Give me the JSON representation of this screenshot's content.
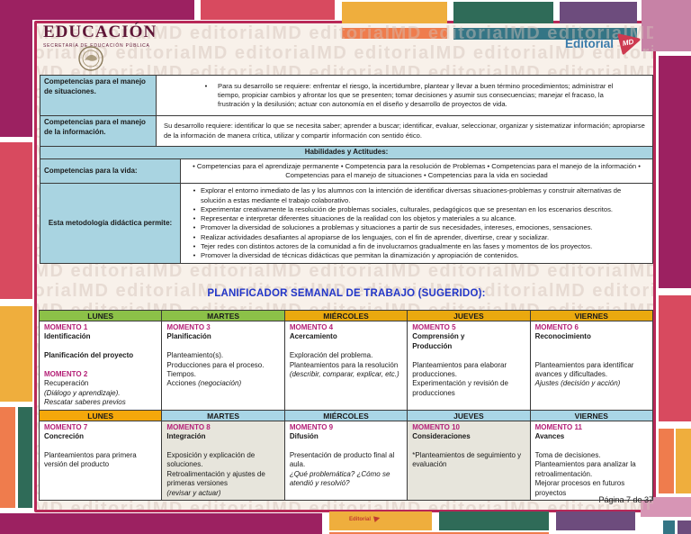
{
  "header": {
    "educacion": {
      "title": "EDUCACIÓN",
      "subtitle": "SECRETARÍA DE EDUCACIÓN PÚBLICA"
    },
    "editorial": {
      "name": "Editorial",
      "badge": "MD"
    }
  },
  "watermark": {
    "text": "editorialMD"
  },
  "competencias": {
    "rows": [
      {
        "label": "Competencias para el manejo de situaciones.",
        "bullets": [
          "Para su desarrollo se requiere: enfrentar el riesgo, la incertidumbre, plantear y llevar a buen término procedimientos; administrar el tiempo, propiciar cambios y afrontar los que se presenten; tomar decisiones y asumir sus consecuencias; manejar el fracaso, la frustración y la desilusión; actuar con autonomía en el diseño y desarrollo de proyectos de vida."
        ]
      },
      {
        "label": "Competencias para el manejo de la información.",
        "text": "Su desarrollo requiere: identificar lo que se necesita saber; aprender a buscar; identificar, evaluar, seleccionar, organizar y sistematizar información; apropiarse de la información de manera crítica, utilizar y compartir información con sentido ético."
      },
      {
        "section": "Habilidades y Actitudes:"
      },
      {
        "label": "Competencias para la vida:",
        "text": "• Competencias para el aprendizaje permanente • Competencia para la resolución de Problemas • Competencias para el manejo de la información • Competencias para el manejo de situaciones • Competencias para la vida en sociedad"
      },
      {
        "label": "Esta metodología didáctica permite:",
        "bullets": [
          "Explorar el entorno inmediato de las y los alumnos con la intención de identificar diversas situaciones-problemas y construir alternativas de solución a estas mediante el trabajo colaborativo.",
          "Experimentar creativamente la resolución de problemas sociales, culturales, pedagógicos que se presentan en los escenarios descritos.",
          "Representar e interpretar diferentes situaciones de la realidad con los objetos y materiales a su alcance.",
          "Promover la diversidad de soluciones a problemas y situaciones a partir de sus necesidades, intereses, emociones, sensaciones.",
          "Realizar actividades desafiantes al apropiarse de los lenguajes, con el fin de aprender, divertirse, crear y socializar.",
          "Tejer redes con distintos actores de la comunidad a fin de involucrarnos gradualmente en las fases y momentos de los proyectos.",
          "Promover la diversidad de técnicas didácticas que permitan la dinamización y apropiación de contenidos."
        ]
      }
    ]
  },
  "planner": {
    "title": "PLANIFICADOR SEMANAL DE TRABAJO (SUGERIDO):",
    "days": [
      "LUNES",
      "MARTES",
      "MIÉRCOLES",
      "JUEVES",
      "VIERNES"
    ],
    "weeks": [
      {
        "header_colors": [
          "green",
          "green",
          "gold",
          "gold",
          "gold"
        ],
        "cell_bg": [
          "white",
          "white",
          "white",
          "white",
          "white"
        ],
        "cells": [
          [
            [
              [
                "MOMENTO 1",
                "m"
              ]
            ],
            [
              [
                "Identificación",
                "b"
              ]
            ],
            [],
            [
              [
                "Planificación del proyecto",
                "b"
              ]
            ],
            [],
            [
              [
                "MOMENTO 2",
                "m"
              ]
            ],
            [
              [
                "Recuperación",
                "n"
              ]
            ],
            [
              [
                "(Diálogo y aprendizaje).",
                "i"
              ]
            ],
            [
              [
                "Rescatar saberes previos",
                "i"
              ]
            ]
          ],
          [
            [
              [
                "MOMENTO 3",
                "m"
              ]
            ],
            [
              [
                "Planificación",
                "b"
              ]
            ],
            [],
            [
              [
                "Planteamiento(s).",
                "n"
              ]
            ],
            [
              [
                "Producciones para el proceso.",
                "n"
              ]
            ],
            [
              [
                "Tiempos.",
                "n"
              ]
            ],
            [
              [
                "Acciones ",
                "n"
              ],
              [
                "(negociación)",
                "i"
              ]
            ]
          ],
          [
            [
              [
                "MOMENTO 4",
                "m"
              ]
            ],
            [
              [
                "Acercamiento",
                "b"
              ]
            ],
            [],
            [
              [
                "Exploración del problema.",
                "n"
              ]
            ],
            [
              [
                "Planteamientos para la resolución",
                "n"
              ]
            ],
            [
              [
                "(describir, comparar, explicar, etc.)",
                "i"
              ]
            ]
          ],
          [
            [
              [
                "MOMENTO 5",
                "m"
              ]
            ],
            [
              [
                "Comprensión y",
                "b"
              ]
            ],
            [
              [
                "Producción",
                "b"
              ]
            ],
            [],
            [
              [
                "Planteamientos para elaborar producciones.",
                "n"
              ]
            ],
            [
              [
                "Experimentación y revisión de producciones",
                "n"
              ]
            ]
          ],
          [
            [
              [
                "MOMENTO 6",
                "m"
              ]
            ],
            [
              [
                "Reconocimiento",
                "b"
              ]
            ],
            [],
            [],
            [
              [
                "Planteamientos para identificar avances y dificultades.",
                "n"
              ]
            ],
            [
              [
                "Ajustes (decisión y acción)",
                "i"
              ]
            ]
          ]
        ]
      },
      {
        "header_colors": [
          "gold2",
          "blue",
          "blue",
          "blue",
          "blue"
        ],
        "cell_bg": [
          "white",
          "gray",
          "white",
          "gray",
          "white"
        ],
        "cells": [
          [
            [
              [
                "MOMENTO 7",
                "m"
              ]
            ],
            [
              [
                "Concreción",
                "b"
              ]
            ],
            [],
            [
              [
                "Planteamientos para primera versión del producto",
                "n"
              ]
            ]
          ],
          [
            [
              [
                "MOMENTO 8",
                "m"
              ]
            ],
            [
              [
                "Integración",
                "b"
              ]
            ],
            [],
            [
              [
                "Exposición y explicación de soluciones.",
                "n"
              ]
            ],
            [
              [
                "Retroalimentación y ajustes de primeras versiones",
                "n"
              ]
            ],
            [
              [
                "(revisar y actuar)",
                "i"
              ]
            ]
          ],
          [
            [
              [
                "MOMENTO 9",
                "m"
              ]
            ],
            [
              [
                "Difusión",
                "b"
              ]
            ],
            [],
            [
              [
                "Presentación de producto final al aula.",
                "n"
              ]
            ],
            [
              [
                "¿Qué problemática? ¿Cómo se atendió y resolvió?",
                "i"
              ]
            ]
          ],
          [
            [
              [
                "MOMENTO 10",
                "m"
              ]
            ],
            [
              [
                "Consideraciones",
                "b"
              ]
            ],
            [],
            [
              [
                "*Planteamientos de seguimiento y evaluación",
                "n"
              ]
            ]
          ],
          [
            [
              [
                "MOMENTO 11",
                "m"
              ]
            ],
            [
              [
                "Avances",
                "b"
              ]
            ],
            [],
            [
              [
                "Toma de decisiones.",
                "n"
              ]
            ],
            [
              [
                "Planteamientos para analizar la retroalimentación.",
                "n"
              ]
            ],
            [
              [
                "Mejorar procesos en futuros proyectos",
                "n"
              ]
            ]
          ]
        ]
      }
    ]
  },
  "footer": {
    "page": "Página 7 de 37"
  },
  "colors": {
    "green": "#8cc148",
    "gold": "#eaa90f",
    "gold2": "#f4a80b",
    "blue": "#a9d6e6",
    "white": "#ffffff",
    "gray": "#e7e5dc",
    "momento": "#b41f76",
    "accent_border": "#b82858",
    "title_blue": "#2236c8",
    "label_blue": "#a9d4e1"
  }
}
